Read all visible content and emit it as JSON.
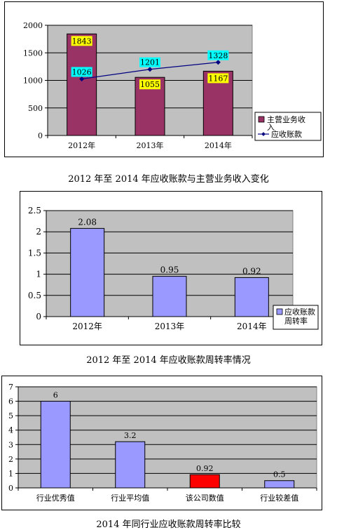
{
  "captions": [
    "2012 年至 2014 年应收账款与主营业务收入变化",
    "2012 年至 2014 年应收账款周转率情况",
    "2014 年同行业应收账款周转率比较"
  ],
  "chart_data": [
    {
      "type": "bar",
      "title": "2012 年至 2014 年应收账款与主营业务收入变化",
      "categories": [
        "2012年",
        "2013年",
        "2014年"
      ],
      "yticks": [
        "0",
        "500",
        "1000",
        "1500",
        "2000"
      ],
      "ylim": [
        0,
        2000
      ],
      "series": [
        {
          "name": "主营业务收入",
          "kind": "bar",
          "values": [
            1843,
            1055,
            1167
          ],
          "color": "#993366",
          "label_bg": "#ffff00"
        },
        {
          "name": "应收账款",
          "kind": "line",
          "values": [
            1026,
            1201,
            1328
          ],
          "color": "#000080",
          "label_bg": "#00ffff"
        }
      ],
      "legend": {
        "position": "right",
        "labels": [
          "主营业务收入",
          "应收账款"
        ]
      },
      "plot_bg": "#c0c0c0",
      "grid": true
    },
    {
      "type": "bar",
      "title": "2012 年至 2014 年应收账款周转率情况",
      "categories": [
        "2012年",
        "2013年",
        "2014年"
      ],
      "yticks": [
        "0",
        "0.5",
        "1",
        "1.5",
        "2",
        "2.5"
      ],
      "ylim": [
        0,
        2.5
      ],
      "series": [
        {
          "name": "应收账款周转率",
          "kind": "bar",
          "values": [
            2.08,
            0.95,
            0.92
          ],
          "color": "#9999ff"
        }
      ],
      "value_labels": [
        "2.08",
        "0.95",
        "0.92"
      ],
      "legend": {
        "position": "right",
        "labels": [
          "应收账款周转率"
        ]
      },
      "plot_bg": "#c0c0c0",
      "grid": true
    },
    {
      "type": "bar",
      "title": "2014 年同行业应收账款周转率比较",
      "categories": [
        "行业优秀值",
        "行业平均值",
        "该公司数值",
        "行业较差值"
      ],
      "yticks": [
        "0",
        "1",
        "2",
        "3",
        "4",
        "5",
        "6",
        "7"
      ],
      "ylim": [
        0,
        7
      ],
      "series": [
        {
          "kind": "bar",
          "values": [
            6,
            3.2,
            0.92,
            0.5
          ],
          "colors": [
            "#9999ff",
            "#9999ff",
            "#ff0000",
            "#9999ff"
          ]
        }
      ],
      "value_labels": [
        "6",
        "3.2",
        "0.92",
        "0.5"
      ],
      "plot_bg": "#c0c0c0",
      "grid": true
    }
  ]
}
